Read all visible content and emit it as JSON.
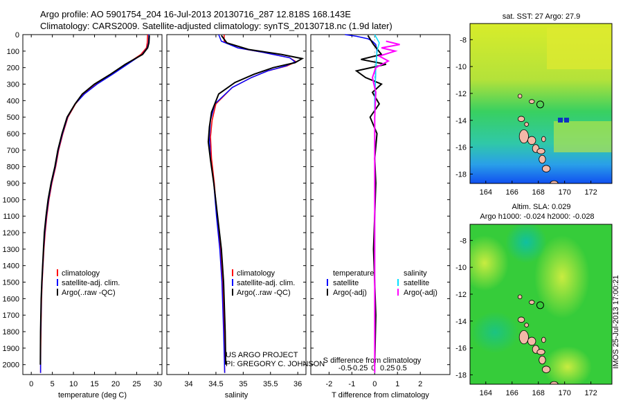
{
  "header": {
    "line1": "Argo profile: AO 5901754_204 16-Jul-2013 20130716_287 12.818S 168.143E",
    "line2": "Climatology: CARS2009. Satellite-adjusted climatology: synTS_20130718.nc (1.9d later)"
  },
  "colors": {
    "climatology": "#ff0000",
    "satellite": "#0000ff",
    "argo": "#000000",
    "sat_salinity": "#00e0ff",
    "argo_salinity": "#ff00ff"
  },
  "depth_axis": {
    "ylim": [
      0,
      2060
    ],
    "ticks": [
      0,
      100,
      200,
      300,
      400,
      500,
      600,
      700,
      800,
      900,
      1000,
      1100,
      1200,
      1300,
      1400,
      1500,
      1600,
      1700,
      1800,
      1900,
      2000
    ]
  },
  "chart_data": [
    {
      "id": "temperature",
      "type": "line",
      "xlabel": "temperature (deg C)",
      "xlim": [
        -2,
        31
      ],
      "xticks": [
        0,
        5,
        10,
        15,
        20,
        25,
        30
      ],
      "legend": {
        "items": [
          "climatology",
          "satellite-adj. clim.",
          "Argo(..raw -QC)"
        ],
        "placement": "bottom-center"
      },
      "series": [
        {
          "name": "climatology",
          "color_key": "climatology",
          "x": [
            27.6,
            27.5,
            27.3,
            26.0,
            22.5,
            19.0,
            15.5,
            12.5,
            10.5,
            8.7,
            7.5,
            6.5,
            5.8,
            4.9,
            4.2,
            3.7,
            3.3,
            3.0,
            2.8,
            2.6,
            2.45,
            2.3,
            2.25,
            2.2
          ],
          "depth": [
            0,
            50,
            80,
            120,
            180,
            240,
            300,
            360,
            420,
            500,
            600,
            700,
            800,
            900,
            1000,
            1100,
            1200,
            1300,
            1400,
            1500,
            1600,
            1800,
            1900,
            2050
          ]
        },
        {
          "name": "satellite-adj. clim.",
          "color_key": "satellite",
          "x": [
            27.9,
            27.8,
            27.5,
            26.3,
            22.8,
            19.3,
            15.6,
            12.6,
            10.4,
            8.6,
            7.4,
            6.4,
            5.7,
            4.8,
            4.1,
            3.6,
            3.2,
            2.95,
            2.75,
            2.55,
            2.4,
            2.25,
            2.2,
            2.2
          ],
          "depth": [
            0,
            50,
            80,
            120,
            180,
            240,
            300,
            360,
            420,
            500,
            600,
            700,
            800,
            900,
            1000,
            1100,
            1200,
            1300,
            1400,
            1500,
            1600,
            1800,
            1900,
            2050
          ]
        },
        {
          "name": "Argo(..raw -QC)",
          "color_key": "argo",
          "x": [
            28.0,
            27.9,
            27.6,
            26.4,
            22.3,
            18.8,
            15.0,
            12.1,
            10.4,
            8.5,
            7.3,
            6.3,
            5.6,
            4.7,
            4.0,
            3.5,
            3.1,
            2.9,
            2.7,
            2.5,
            2.35,
            2.2,
            2.15
          ],
          "depth": [
            5,
            50,
            80,
            120,
            180,
            240,
            300,
            360,
            420,
            500,
            600,
            700,
            800,
            900,
            1000,
            1100,
            1200,
            1300,
            1400,
            1500,
            1600,
            1800,
            2000
          ]
        }
      ]
    },
    {
      "id": "salinity",
      "type": "line",
      "xlabel": "salinity",
      "xlim": [
        33.6,
        36.15
      ],
      "xticks": [
        34,
        34.5,
        35,
        35.5,
        36
      ],
      "legend": {
        "items": [
          "climatology",
          "satellite-adj. clim.",
          "Argo(..raw -QC)"
        ],
        "placement": "bottom-center"
      },
      "series": [
        {
          "name": "climatology",
          "color_key": "climatology",
          "x": [
            34.65,
            34.65,
            34.9,
            35.4,
            35.85,
            35.97,
            35.8,
            35.45,
            35.15,
            34.8,
            34.5,
            34.43,
            34.4,
            34.42,
            34.47,
            34.52,
            34.58,
            34.62,
            34.65,
            34.66
          ],
          "depth": [
            0,
            40,
            80,
            110,
            140,
            165,
            190,
            220,
            260,
            320,
            420,
            520,
            620,
            750,
            900,
            1100,
            1300,
            1500,
            1800,
            2050
          ]
        },
        {
          "name": "satellite-adj. clim.",
          "color_key": "satellite",
          "x": [
            34.55,
            34.6,
            34.9,
            35.4,
            35.85,
            35.95,
            35.78,
            35.45,
            35.15,
            34.8,
            34.48,
            34.4,
            34.38,
            34.4,
            34.46,
            34.51,
            34.57,
            34.61,
            34.64,
            34.66
          ],
          "depth": [
            0,
            40,
            80,
            110,
            140,
            165,
            190,
            220,
            260,
            320,
            420,
            520,
            620,
            750,
            900,
            1100,
            1300,
            1500,
            1800,
            2050
          ]
        },
        {
          "name": "Argo(..raw -QC)",
          "color_key": "argo",
          "x": [
            34.6,
            34.7,
            35.1,
            35.7,
            36.08,
            35.95,
            35.55,
            35.2,
            34.85,
            34.55,
            34.42,
            34.38,
            34.36,
            34.4,
            34.46,
            34.53,
            34.6,
            34.64,
            34.67,
            34.68
          ],
          "depth": [
            5,
            50,
            90,
            120,
            145,
            170,
            200,
            240,
            290,
            360,
            470,
            560,
            650,
            760,
            900,
            1100,
            1300,
            1500,
            1800,
            2000
          ]
        }
      ]
    },
    {
      "id": "difference",
      "type": "line",
      "xlabel": "T difference from climatology",
      "xlabel_top": "S difference from climatology",
      "xlim": [
        -2.8,
        3.3
      ],
      "xticks": [
        -2,
        -1,
        0,
        1,
        2
      ],
      "sticks": [
        -0.5,
        -0.25,
        0,
        0.25,
        0.5
      ],
      "legend": {
        "left": {
          "title": "temperature",
          "items": [
            "satellite",
            "Argo(-adj)"
          ]
        },
        "right": {
          "title": "salinity",
          "items": [
            "satellite",
            "Argo(-adj)"
          ]
        },
        "placement": "bottom-center"
      },
      "series": [
        {
          "name": "temperature satellite",
          "color_key": "satellite",
          "x": [
            -1.3,
            -0.8,
            -0.3,
            -0.1,
            0.05,
            0.1,
            0.05,
            0.0,
            0.0,
            0.0,
            0.0
          ],
          "depth": [
            0,
            10,
            25,
            40,
            60,
            100,
            200,
            400,
            700,
            1200,
            2050
          ]
        },
        {
          "name": "temperature Argo(-adj)",
          "color_key": "argo",
          "x": [
            -0.3,
            -0.05,
            0.3,
            -0.6,
            0.5,
            -0.8,
            -0.4,
            0.3,
            -0.1,
            0.2,
            -0.2,
            0.1,
            0.0,
            0.05,
            -0.05,
            0.05,
            0.0
          ],
          "depth": [
            5,
            60,
            120,
            150,
            180,
            220,
            260,
            300,
            350,
            420,
            500,
            600,
            750,
            900,
            1300,
            1700,
            2000
          ]
        },
        {
          "name": "salinity satellite",
          "color_key": "sat_salinity",
          "x": [
            0.0,
            0.2,
            0.1,
            0.05,
            0.0,
            0.0,
            0.0
          ],
          "depth": [
            0,
            50,
            100,
            200,
            400,
            1000,
            2050
          ]
        },
        {
          "name": "salinity Argo(-adj)",
          "color_key": "argo_salinity",
          "x": [
            0.5,
            1.1,
            0.3,
            0.9,
            0.2,
            0.6,
            0.05,
            -0.1,
            0.05,
            0.0,
            0.0,
            0.0
          ],
          "depth": [
            40,
            60,
            80,
            100,
            130,
            160,
            200,
            260,
            350,
            500,
            800,
            2050
          ]
        }
      ]
    }
  ],
  "credit": {
    "line1": "US ARGO PROJECT",
    "line2": "PI: GREGORY C. JOHNSON"
  },
  "maps": [
    {
      "id": "sst",
      "title": "sat. SST: 27 Argo: 27.9",
      "xticks": [
        164,
        166,
        168,
        170,
        172
      ],
      "yticks": [
        -8,
        -10,
        -12,
        -14,
        -16,
        -18
      ],
      "lon_range": [
        162.8,
        173.6
      ],
      "lat_range": [
        -18.7,
        -6.8
      ],
      "profile_marker": {
        "lon": 168.143,
        "lat": -12.818
      }
    },
    {
      "id": "sla",
      "title1": "Altim. SLA: 0.029",
      "title2": "Argo h1000: -0.024 h2000: -0.028",
      "xticks": [
        164,
        166,
        168,
        170,
        172
      ],
      "yticks": [
        -8,
        -10,
        -12,
        -14,
        -16,
        -18
      ],
      "lon_range": [
        162.8,
        173.6
      ],
      "lat_range": [
        -18.7,
        -6.8
      ],
      "profile_marker": {
        "lon": 168.143,
        "lat": -12.818
      }
    }
  ],
  "stamp": "IMOS 25-Jul-2013 17:00:21"
}
